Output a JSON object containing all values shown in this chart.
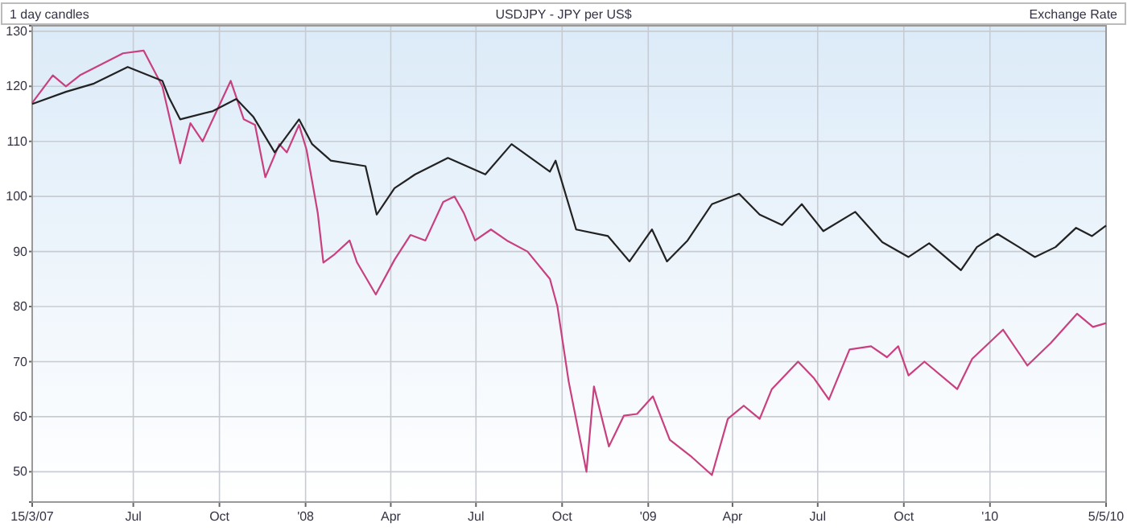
{
  "chart_data": {
    "type": "line",
    "title": "USDJPY - JPY per US$",
    "ylabel": "Exchange Rate",
    "annotations": [
      "1 day candles"
    ],
    "xlim": [
      "2007-03-15",
      "2010-05-05"
    ],
    "xticks": [
      {
        "value": "2007-03-15",
        "label": "15/3/07"
      },
      {
        "value": "2007-07-01",
        "label": "Jul"
      },
      {
        "value": "2007-10-01",
        "label": "Oct"
      },
      {
        "value": "2008-01-01",
        "label": "'08"
      },
      {
        "value": "2008-04-01",
        "label": "Apr"
      },
      {
        "value": "2008-07-01",
        "label": "Jul"
      },
      {
        "value": "2008-10-01",
        "label": "Oct"
      },
      {
        "value": "2009-01-01",
        "label": "'09"
      },
      {
        "value": "2009-04-01",
        "label": "Apr"
      },
      {
        "value": "2009-07-01",
        "label": "Jul"
      },
      {
        "value": "2009-10-01",
        "label": "Oct"
      },
      {
        "value": "2010-01-01",
        "label": "'10"
      },
      {
        "value": "2010-05-05",
        "label": "5/5/10"
      }
    ],
    "ylim": [
      44.5,
      131
    ],
    "yticks": [
      50,
      60,
      70,
      80,
      90,
      100,
      110,
      120,
      130
    ],
    "grid": true,
    "line_style": "solid",
    "marker": "none",
    "series": [
      {
        "color": "#c8407f",
        "x": [
          "2007-03-15",
          "2007-04-06",
          "2007-04-20",
          "2007-05-05",
          "2007-06-20",
          "2007-07-12",
          "2007-08-01",
          "2007-08-20",
          "2007-08-31",
          "2007-09-13",
          "2007-10-13",
          "2007-10-27",
          "2007-11-08",
          "2007-11-19",
          "2007-12-04",
          "2007-12-12",
          "2007-12-25",
          "2008-01-02",
          "2008-01-14",
          "2008-01-20",
          "2008-02-01",
          "2008-02-17",
          "2008-02-25",
          "2008-03-16",
          "2008-04-05",
          "2008-04-22",
          "2008-05-08",
          "2008-05-27",
          "2008-06-08",
          "2008-06-18",
          "2008-06-30",
          "2008-07-17",
          "2008-08-03",
          "2008-08-25",
          "2008-09-18",
          "2008-09-26",
          "2008-10-08",
          "2008-10-27",
          "2008-11-04",
          "2008-11-20",
          "2008-12-06",
          "2008-12-20",
          "2009-01-06",
          "2009-01-24",
          "2009-02-15",
          "2009-03-10",
          "2009-03-27",
          "2009-04-13",
          "2009-04-30",
          "2009-05-13",
          "2009-06-10",
          "2009-06-27",
          "2009-07-13",
          "2009-08-04",
          "2009-08-27",
          "2009-09-13",
          "2009-09-25",
          "2009-10-06",
          "2009-10-23",
          "2009-11-27",
          "2009-12-13",
          "2010-01-15",
          "2010-02-04",
          "2010-02-10",
          "2010-03-07",
          "2010-04-04",
          "2010-04-21",
          "2010-05-05"
        ],
        "values": [
          117,
          122,
          120,
          122,
          126,
          126.5,
          120,
          106,
          113.3,
          110,
          121,
          114,
          113,
          103.5,
          109.5,
          108,
          113,
          108.5,
          97,
          88,
          89.5,
          92,
          88,
          82.2,
          88.5,
          93,
          92,
          99,
          100,
          97,
          92,
          94,
          92,
          90,
          85,
          80,
          66.4,
          50,
          65.5,
          54.6,
          60.2,
          60.5,
          63.7,
          55.8,
          52.9,
          49.4,
          59.6,
          62,
          59.6,
          65,
          70,
          67,
          63.1,
          72.2,
          72.8,
          70.8,
          72.8,
          67.5,
          70,
          65,
          70.5,
          75.8,
          70.8,
          69.3,
          73.4,
          78.7,
          76.3,
          77
        ]
      },
      {
        "color": "#222222",
        "x": [
          "2007-03-15",
          "2007-04-20",
          "2007-05-20",
          "2007-06-25",
          "2007-08-01",
          "2007-08-08",
          "2007-08-20",
          "2007-09-24",
          "2007-10-19",
          "2007-11-06",
          "2007-11-29",
          "2007-12-25",
          "2008-01-08",
          "2008-01-28",
          "2008-03-05",
          "2008-03-17",
          "2008-04-05",
          "2008-04-27",
          "2008-06-01",
          "2008-07-11",
          "2008-08-08",
          "2008-09-18",
          "2008-09-24",
          "2008-10-16",
          "2008-11-19",
          "2008-12-12",
          "2009-01-05",
          "2009-01-21",
          "2009-02-12",
          "2009-03-10",
          "2009-04-08",
          "2009-04-30",
          "2009-05-24",
          "2009-06-14",
          "2009-07-07",
          "2009-08-10",
          "2009-09-08",
          "2009-10-06",
          "2009-10-28",
          "2009-12-01",
          "2009-12-18",
          "2010-01-09",
          "2010-02-01",
          "2010-02-18",
          "2010-03-12",
          "2010-04-03",
          "2010-04-20",
          "2010-05-05"
        ],
        "values": [
          116.8,
          119,
          120.5,
          123.5,
          121,
          118,
          114,
          115.5,
          117.7,
          114.5,
          108,
          114,
          109.5,
          106.5,
          105.5,
          96.7,
          101.5,
          104,
          107,
          104,
          109.5,
          104.5,
          106.5,
          94,
          92.8,
          88.2,
          94,
          88.2,
          92,
          98.6,
          100.5,
          96.7,
          94.8,
          98.6,
          93.7,
          97.2,
          91.7,
          89,
          91.5,
          86.6,
          90.8,
          93.2,
          90.8,
          89,
          90.8,
          94.3,
          92.8,
          94.7
        ]
      }
    ]
  }
}
